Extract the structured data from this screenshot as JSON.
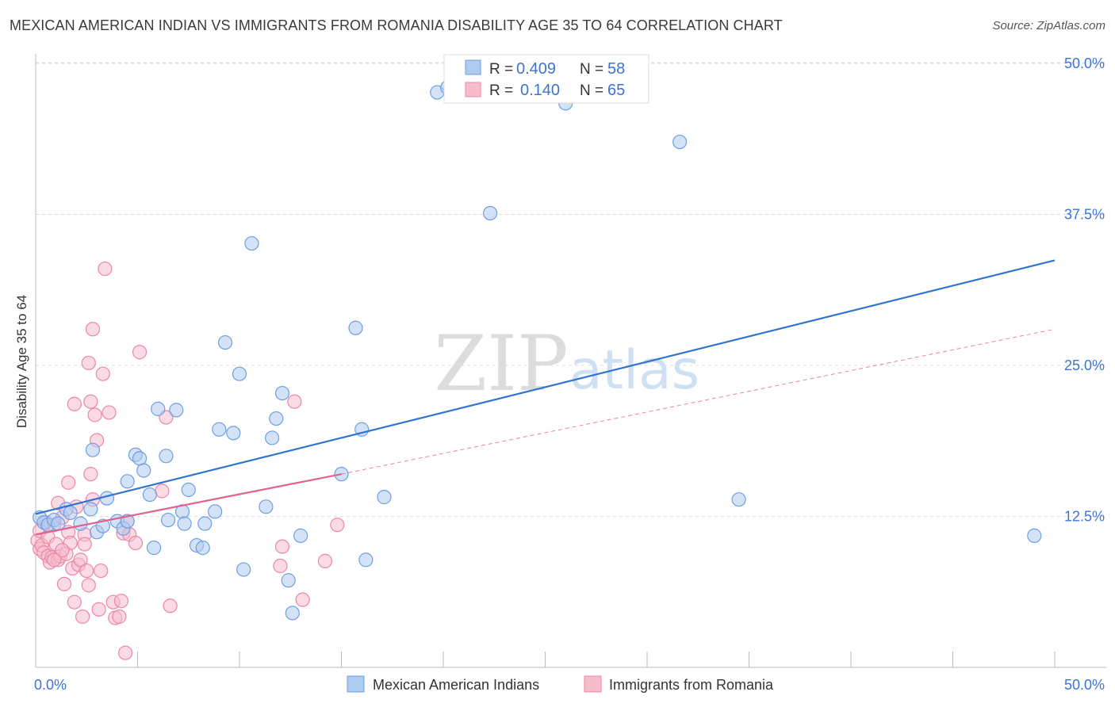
{
  "header": {
    "title": "MEXICAN AMERICAN INDIAN VS IMMIGRANTS FROM ROMANIA DISABILITY AGE 35 TO 64 CORRELATION CHART",
    "source": "Source: ZipAtlas.com"
  },
  "watermark": {
    "zip": "ZIP",
    "atlas": "atlas"
  },
  "legend_top": [
    {
      "r_label": "R =",
      "r_value": "0.409",
      "n_label": "N =",
      "n_value": "58"
    },
    {
      "r_label": "R =",
      "r_value": "0.140",
      "n_label": "N =",
      "n_value": "65"
    }
  ],
  "legend_bottom": [
    {
      "label": "Mexican American Indians"
    },
    {
      "label": "Immigrants from Romania"
    }
  ],
  "colors": {
    "blue_fill": "#aecbf0",
    "blue_stroke": "#6f9fe0",
    "blue_line": "#2f74d0",
    "pink_fill": "#f6bccd",
    "pink_stroke": "#ec87a5",
    "pink_line": "#e2628f",
    "value_text": "#3d74d4",
    "grid": "#dddddd"
  },
  "chart_data": {
    "type": "scatter",
    "xlabel": "",
    "ylabel": "Disability Age 35 to 64",
    "xlim": [
      0,
      50
    ],
    "ylim": [
      0,
      50
    ],
    "x_tick_labels": [
      {
        "value": 0,
        "label": "0.0%"
      },
      {
        "value": 50,
        "label": "50.0%"
      }
    ],
    "y_tick_labels": [
      {
        "value": 12.5,
        "label": "12.5%"
      },
      {
        "value": 25.0,
        "label": "25.0%"
      },
      {
        "value": 37.5,
        "label": "37.5%"
      },
      {
        "value": 50.0,
        "label": "50.0%"
      }
    ],
    "grid": true,
    "legend_position": "top-center",
    "series": [
      {
        "name": "Mexican American Indians",
        "color": "#aecbf0",
        "points": [
          [
            0.2,
            12.4
          ],
          [
            0.4,
            12.0
          ],
          [
            0.6,
            11.8
          ],
          [
            0.9,
            12.2
          ],
          [
            1.1,
            11.9
          ],
          [
            1.5,
            13.1
          ],
          [
            1.7,
            12.8
          ],
          [
            2.2,
            11.9
          ],
          [
            2.7,
            13.1
          ],
          [
            2.8,
            18.0
          ],
          [
            3.0,
            11.2
          ],
          [
            3.3,
            11.7
          ],
          [
            3.5,
            14.0
          ],
          [
            4.0,
            12.1
          ],
          [
            4.3,
            11.5
          ],
          [
            4.5,
            12.1
          ],
          [
            4.5,
            15.4
          ],
          [
            4.9,
            17.6
          ],
          [
            5.1,
            17.3
          ],
          [
            5.3,
            16.3
          ],
          [
            5.6,
            14.3
          ],
          [
            5.8,
            9.9
          ],
          [
            6.0,
            21.4
          ],
          [
            6.4,
            17.5
          ],
          [
            6.5,
            12.2
          ],
          [
            6.9,
            21.3
          ],
          [
            7.2,
            12.9
          ],
          [
            7.3,
            11.9
          ],
          [
            7.5,
            14.7
          ],
          [
            7.9,
            10.1
          ],
          [
            8.2,
            9.9
          ],
          [
            8.3,
            11.9
          ],
          [
            8.8,
            12.9
          ],
          [
            9.3,
            26.9
          ],
          [
            9.0,
            19.7
          ],
          [
            9.7,
            19.4
          ],
          [
            10.0,
            24.3
          ],
          [
            10.2,
            8.1
          ],
          [
            10.6,
            35.1
          ],
          [
            11.3,
            13.3
          ],
          [
            11.6,
            19.0
          ],
          [
            11.8,
            20.6
          ],
          [
            12.1,
            22.7
          ],
          [
            12.4,
            7.2
          ],
          [
            12.6,
            4.5
          ],
          [
            13.0,
            10.9
          ],
          [
            15.0,
            16.0
          ],
          [
            15.7,
            28.1
          ],
          [
            16.0,
            19.7
          ],
          [
            16.2,
            8.9
          ],
          [
            17.1,
            14.1
          ],
          [
            19.7,
            47.6
          ],
          [
            20.2,
            48.0
          ],
          [
            22.3,
            37.6
          ],
          [
            26.0,
            46.7
          ],
          [
            31.6,
            43.5
          ],
          [
            34.5,
            13.9
          ],
          [
            49.0,
            10.9
          ]
        ]
      },
      {
        "name": "Immigrants from Romania",
        "color": "#f6bccd",
        "points": [
          [
            0.1,
            10.5
          ],
          [
            0.2,
            9.8
          ],
          [
            0.2,
            11.3
          ],
          [
            0.3,
            10.1
          ],
          [
            0.4,
            9.5
          ],
          [
            0.5,
            12.0
          ],
          [
            0.6,
            9.2
          ],
          [
            0.6,
            10.8
          ],
          [
            0.7,
            8.7
          ],
          [
            0.8,
            9.1
          ],
          [
            0.9,
            11.8
          ],
          [
            1.0,
            10.2
          ],
          [
            1.1,
            8.9
          ],
          [
            1.1,
            13.6
          ],
          [
            1.2,
            9.2
          ],
          [
            1.3,
            12.4
          ],
          [
            1.4,
            6.9
          ],
          [
            1.5,
            9.4
          ],
          [
            1.6,
            11.2
          ],
          [
            1.7,
            10.3
          ],
          [
            1.6,
            15.3
          ],
          [
            1.9,
            5.4
          ],
          [
            1.8,
            8.2
          ],
          [
            1.9,
            21.8
          ],
          [
            2.0,
            13.3
          ],
          [
            2.1,
            8.5
          ],
          [
            2.2,
            8.9
          ],
          [
            2.3,
            4.2
          ],
          [
            2.4,
            11.0
          ],
          [
            2.4,
            10.2
          ],
          [
            2.5,
            8.0
          ],
          [
            2.6,
            25.2
          ],
          [
            2.7,
            22.0
          ],
          [
            2.6,
            6.8
          ],
          [
            2.8,
            13.9
          ],
          [
            2.7,
            16.0
          ],
          [
            2.8,
            28.0
          ],
          [
            2.9,
            20.9
          ],
          [
            3.0,
            18.8
          ],
          [
            3.1,
            4.8
          ],
          [
            3.2,
            8.0
          ],
          [
            3.3,
            24.3
          ],
          [
            3.4,
            33.0
          ],
          [
            3.6,
            21.1
          ],
          [
            3.8,
            5.4
          ],
          [
            3.9,
            4.1
          ],
          [
            4.1,
            4.2
          ],
          [
            4.2,
            5.5
          ],
          [
            4.3,
            11.1
          ],
          [
            4.4,
            1.2
          ],
          [
            4.5,
            12.1
          ],
          [
            4.6,
            11.0
          ],
          [
            4.9,
            10.3
          ],
          [
            5.1,
            26.1
          ],
          [
            6.2,
            14.6
          ],
          [
            6.4,
            20.7
          ],
          [
            6.6,
            5.1
          ],
          [
            12.0,
            8.4
          ],
          [
            12.1,
            10.0
          ],
          [
            12.7,
            22.0
          ],
          [
            13.1,
            5.6
          ],
          [
            14.2,
            8.8
          ],
          [
            14.8,
            11.8
          ],
          [
            1.3,
            9.7
          ],
          [
            0.9,
            8.9
          ]
        ]
      }
    ],
    "trend_lines": [
      {
        "series": "Mexican American Indians",
        "x": [
          0,
          50
        ],
        "y": [
          12.7,
          33.7
        ],
        "style": "solid"
      },
      {
        "series": "Immigrants from Romania",
        "x": [
          0,
          15
        ],
        "y": [
          11.0,
          16.0
        ],
        "style": "solid"
      },
      {
        "series": "Immigrants from Romania",
        "x": [
          15,
          50
        ],
        "y": [
          16.0,
          28.0
        ],
        "style": "dashed"
      }
    ]
  }
}
